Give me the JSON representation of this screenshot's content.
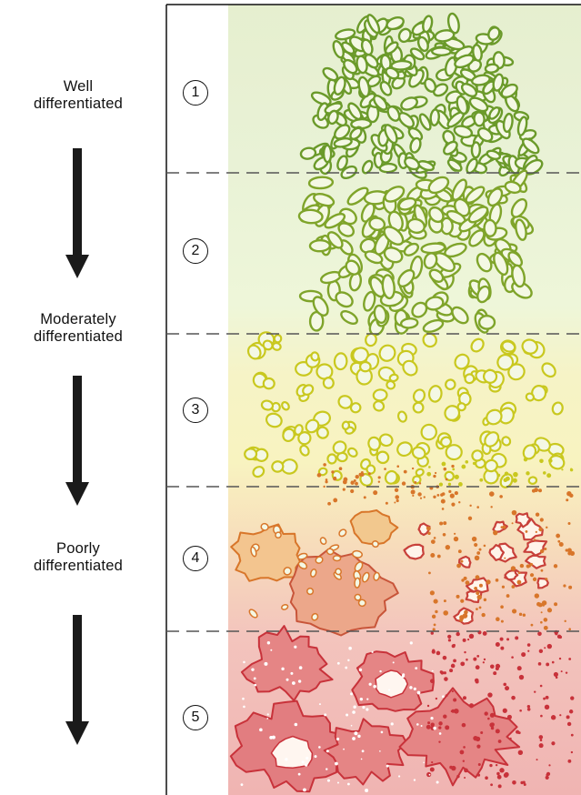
{
  "labels": {
    "well": [
      "Well",
      "differentiated"
    ],
    "moderate": [
      "Moderately",
      "differentiated"
    ],
    "poor": [
      "Poorly",
      "differentiated"
    ]
  },
  "grades": [
    "1",
    "2",
    "3",
    "4",
    "5"
  ],
  "colors": {
    "grade_1": "#6b9a2a",
    "grade_2": "#7fa42a",
    "grade_3": "#c9c81f",
    "grade_4": "#d8762a",
    "grade_5": "#c8323a",
    "arrow": "#1a1a1a",
    "divider": "#555555"
  }
}
